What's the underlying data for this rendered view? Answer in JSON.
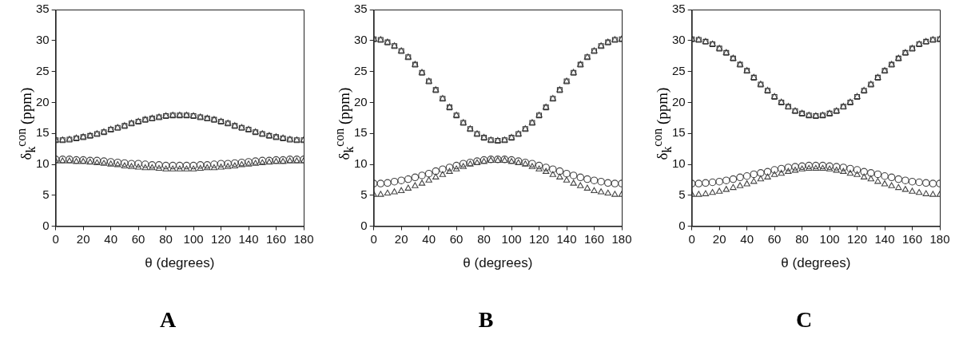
{
  "chart_data": [
    {
      "type": "scatter",
      "title": "A",
      "xlabel": "θ (degrees)",
      "ylabel": "δ$_{k}$$^{con}$ (ppm)",
      "x": [
        0,
        5,
        10,
        15,
        20,
        25,
        30,
        35,
        40,
        45,
        50,
        55,
        60,
        65,
        70,
        75,
        80,
        85,
        90,
        95,
        100,
        105,
        110,
        115,
        120,
        125,
        130,
        135,
        140,
        145,
        150,
        155,
        160,
        165,
        170,
        175,
        180
      ],
      "xlim": [
        0,
        180
      ],
      "xticks": [
        0,
        20,
        40,
        60,
        80,
        100,
        120,
        140,
        160,
        180
      ],
      "ylim": [
        0,
        35
      ],
      "yticks": [
        0,
        5,
        10,
        15,
        20,
        25,
        30,
        35
      ],
      "grid": false,
      "legend": false,
      "series": [
        {
          "color": "#333333",
          "marker": "square",
          "values": [
            13.9,
            13.9,
            14.0,
            14.2,
            14.4,
            14.6,
            14.9,
            15.2,
            15.6,
            15.9,
            16.2,
            16.6,
            16.9,
            17.2,
            17.4,
            17.6,
            17.8,
            17.9,
            17.9,
            17.9,
            17.8,
            17.6,
            17.4,
            17.2,
            16.9,
            16.6,
            16.2,
            15.9,
            15.6,
            15.2,
            14.9,
            14.6,
            14.4,
            14.2,
            14.0,
            13.9,
            13.9
          ]
        },
        {
          "color": "#555555",
          "marker": "triangle",
          "values": [
            13.9,
            13.9,
            14.0,
            14.2,
            14.4,
            14.6,
            14.9,
            15.2,
            15.6,
            15.9,
            16.2,
            16.6,
            16.9,
            17.2,
            17.4,
            17.6,
            17.8,
            17.9,
            17.9,
            17.9,
            17.8,
            17.6,
            17.4,
            17.2,
            16.9,
            16.6,
            16.2,
            15.9,
            15.6,
            15.2,
            14.9,
            14.6,
            14.4,
            14.2,
            14.0,
            13.9,
            13.9
          ]
        },
        {
          "color": "#444444",
          "marker": "circle",
          "values": [
            10.8,
            10.8,
            10.8,
            10.7,
            10.7,
            10.6,
            10.6,
            10.5,
            10.4,
            10.3,
            10.2,
            10.1,
            10.1,
            10.0,
            9.9,
            9.9,
            9.8,
            9.8,
            9.8,
            9.8,
            9.8,
            9.9,
            9.9,
            10.0,
            10.1,
            10.1,
            10.2,
            10.3,
            10.4,
            10.5,
            10.6,
            10.6,
            10.7,
            10.7,
            10.8,
            10.8,
            10.8
          ]
        },
        {
          "color": "#444444",
          "marker": "triangle",
          "values": [
            10.5,
            10.5,
            10.5,
            10.4,
            10.4,
            10.3,
            10.2,
            10.1,
            10.0,
            9.9,
            9.7,
            9.6,
            9.5,
            9.4,
            9.4,
            9.3,
            9.2,
            9.2,
            9.2,
            9.2,
            9.2,
            9.3,
            9.4,
            9.4,
            9.5,
            9.6,
            9.7,
            9.9,
            10.0,
            10.1,
            10.2,
            10.3,
            10.4,
            10.4,
            10.5,
            10.5,
            10.5
          ]
        }
      ]
    },
    {
      "type": "scatter",
      "title": "B",
      "xlabel": "θ (degrees)",
      "ylabel": "δ$_{k}$$^{con}$ (ppm)",
      "x": [
        0,
        5,
        10,
        15,
        20,
        25,
        30,
        35,
        40,
        45,
        50,
        55,
        60,
        65,
        70,
        75,
        80,
        85,
        90,
        95,
        100,
        105,
        110,
        115,
        120,
        125,
        130,
        135,
        140,
        145,
        150,
        155,
        160,
        165,
        170,
        175,
        180
      ],
      "xlim": [
        0,
        180
      ],
      "xticks": [
        0,
        20,
        40,
        60,
        80,
        100,
        120,
        140,
        160,
        180
      ],
      "ylim": [
        0,
        35
      ],
      "yticks": [
        0,
        5,
        10,
        15,
        20,
        25,
        30,
        35
      ],
      "grid": false,
      "legend": false,
      "series": [
        {
          "color": "#333333",
          "marker": "square",
          "values": [
            30.2,
            30.1,
            29.7,
            29.1,
            28.3,
            27.3,
            26.1,
            24.8,
            23.4,
            22.0,
            20.6,
            19.2,
            17.9,
            16.7,
            15.7,
            14.9,
            14.3,
            13.9,
            13.8,
            13.9,
            14.3,
            14.9,
            15.7,
            16.7,
            17.9,
            19.2,
            20.6,
            22.0,
            23.4,
            24.8,
            26.1,
            27.3,
            28.3,
            29.1,
            29.7,
            30.1,
            30.2
          ]
        },
        {
          "color": "#555555",
          "marker": "triangle",
          "values": [
            30.2,
            30.1,
            29.7,
            29.1,
            28.3,
            27.3,
            26.1,
            24.8,
            23.4,
            22.0,
            20.6,
            19.2,
            17.9,
            16.7,
            15.7,
            14.9,
            14.3,
            13.9,
            13.8,
            13.9,
            14.3,
            14.9,
            15.7,
            16.7,
            17.9,
            19.2,
            20.6,
            22.0,
            23.4,
            24.8,
            26.1,
            27.3,
            28.3,
            29.1,
            29.7,
            30.1,
            30.2
          ]
        },
        {
          "color": "#444444",
          "marker": "circle",
          "values": [
            6.9,
            6.9,
            7.0,
            7.2,
            7.4,
            7.6,
            7.9,
            8.2,
            8.5,
            8.9,
            9.2,
            9.5,
            9.8,
            10.1,
            10.3,
            10.5,
            10.7,
            10.8,
            10.8,
            10.8,
            10.7,
            10.5,
            10.3,
            10.1,
            9.8,
            9.5,
            9.2,
            8.9,
            8.5,
            8.2,
            7.9,
            7.6,
            7.4,
            7.2,
            7.0,
            6.9,
            6.9
          ]
        },
        {
          "color": "#444444",
          "marker": "triangle",
          "values": [
            5.1,
            5.1,
            5.3,
            5.5,
            5.7,
            6.1,
            6.5,
            6.9,
            7.4,
            7.9,
            8.3,
            8.8,
            9.2,
            9.6,
            10.0,
            10.2,
            10.4,
            10.6,
            10.6,
            10.6,
            10.4,
            10.2,
            10.0,
            9.6,
            9.2,
            8.8,
            8.3,
            7.9,
            7.4,
            6.9,
            6.5,
            6.1,
            5.7,
            5.5,
            5.3,
            5.1,
            5.1
          ]
        }
      ]
    },
    {
      "type": "scatter",
      "title": "C",
      "xlabel": "θ (degrees)",
      "ylabel": "δ$_{k}$$^{con}$ (ppm)",
      "x": [
        0,
        5,
        10,
        15,
        20,
        25,
        30,
        35,
        40,
        45,
        50,
        55,
        60,
        65,
        70,
        75,
        80,
        85,
        90,
        95,
        100,
        105,
        110,
        115,
        120,
        125,
        130,
        135,
        140,
        145,
        150,
        155,
        160,
        165,
        170,
        175,
        180
      ],
      "xlim": [
        0,
        180
      ],
      "xticks": [
        0,
        20,
        40,
        60,
        80,
        100,
        120,
        140,
        160,
        180
      ],
      "ylim": [
        0,
        35
      ],
      "yticks": [
        0,
        5,
        10,
        15,
        20,
        25,
        30,
        35
      ],
      "grid": false,
      "legend": false,
      "series": [
        {
          "color": "#333333",
          "marker": "square",
          "values": [
            30.2,
            30.1,
            29.8,
            29.4,
            28.7,
            28.0,
            27.1,
            26.1,
            25.1,
            24.0,
            22.9,
            21.9,
            20.9,
            20.0,
            19.3,
            18.6,
            18.2,
            17.9,
            17.8,
            17.9,
            18.2,
            18.6,
            19.3,
            20.0,
            20.9,
            21.9,
            22.9,
            24.0,
            25.1,
            26.1,
            27.1,
            28.0,
            28.7,
            29.4,
            29.8,
            30.1,
            30.2
          ]
        },
        {
          "color": "#555555",
          "marker": "triangle",
          "values": [
            30.2,
            30.1,
            29.8,
            29.4,
            28.7,
            28.0,
            27.1,
            26.1,
            25.1,
            24.0,
            22.9,
            21.9,
            20.9,
            20.0,
            19.3,
            18.6,
            18.2,
            17.9,
            17.8,
            17.9,
            18.2,
            18.6,
            19.3,
            20.0,
            20.9,
            21.9,
            22.9,
            24.0,
            25.1,
            26.1,
            27.1,
            28.0,
            28.7,
            29.4,
            29.8,
            30.1,
            30.2
          ]
        },
        {
          "color": "#444444",
          "marker": "circle",
          "values": [
            6.9,
            6.9,
            7.0,
            7.1,
            7.2,
            7.4,
            7.6,
            7.9,
            8.1,
            8.4,
            8.6,
            8.8,
            9.1,
            9.3,
            9.5,
            9.6,
            9.7,
            9.8,
            9.8,
            9.8,
            9.7,
            9.6,
            9.5,
            9.3,
            9.1,
            8.8,
            8.6,
            8.4,
            8.1,
            7.9,
            7.6,
            7.4,
            7.2,
            7.1,
            7.0,
            6.9,
            6.9
          ]
        },
        {
          "color": "#444444",
          "marker": "triangle",
          "values": [
            5.1,
            5.1,
            5.2,
            5.4,
            5.6,
            5.9,
            6.2,
            6.5,
            6.8,
            7.2,
            7.6,
            7.9,
            8.3,
            8.5,
            8.8,
            9.0,
            9.2,
            9.3,
            9.3,
            9.3,
            9.2,
            9.0,
            8.8,
            8.5,
            8.3,
            7.9,
            7.6,
            7.2,
            6.8,
            6.5,
            6.2,
            5.9,
            5.6,
            5.4,
            5.2,
            5.1,
            5.1
          ]
        }
      ]
    }
  ]
}
